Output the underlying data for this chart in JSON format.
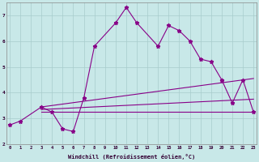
{
  "xlabel": "Windchill (Refroidissement éolien,°C)",
  "background_color": "#c8e8e8",
  "grid_color": "#a8cccc",
  "line_color": "#880088",
  "ylim": [
    2.0,
    7.5
  ],
  "xlim": [
    -0.3,
    23.3
  ],
  "yticks": [
    2,
    3,
    4,
    5,
    6,
    7
  ],
  "xticks": [
    0,
    1,
    2,
    3,
    4,
    5,
    6,
    7,
    8,
    9,
    10,
    11,
    12,
    13,
    14,
    15,
    16,
    17,
    18,
    19,
    20,
    21,
    22,
    23
  ],
  "line1_x": [
    0,
    1,
    3,
    4,
    5,
    6,
    7,
    8,
    10,
    11,
    12,
    14,
    15,
    16,
    17,
    18,
    19,
    20
  ],
  "line1_y": [
    2.75,
    2.9,
    3.45,
    3.25,
    2.6,
    2.5,
    3.8,
    5.8,
    6.7,
    7.3,
    6.7,
    5.8,
    6.6,
    6.4,
    6.0,
    5.3,
    5.2,
    4.5
  ],
  "line2_x": [
    20,
    21,
    22,
    23
  ],
  "line2_y": [
    4.5,
    3.6,
    4.5,
    3.25
  ],
  "line3_x": [
    3,
    23
  ],
  "line3_y": [
    3.45,
    4.55
  ],
  "line4_x": [
    3,
    23
  ],
  "line4_y": [
    3.35,
    3.75
  ],
  "line5_x": [
    3,
    23
  ],
  "line5_y": [
    3.25,
    3.25
  ]
}
